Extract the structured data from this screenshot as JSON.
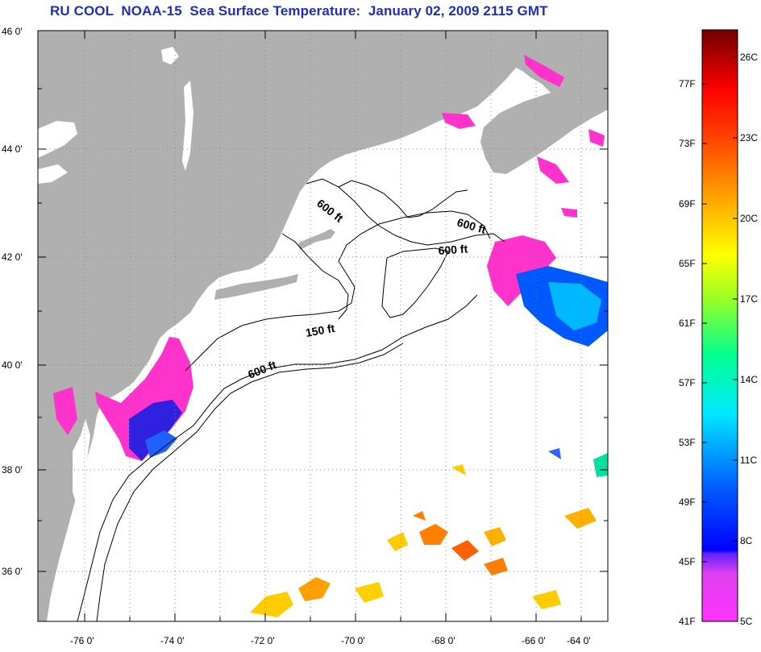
{
  "title": "RU COOL  NOAA-15  Sea Surface Temperature:  January 02, 2009 2115 GMT",
  "map": {
    "latitude_labels": [
      "46 0'",
      "44 0'",
      "42 0'",
      "40 0'",
      "38 0'",
      "36 0'"
    ],
    "longitude_labels": [
      "-76 0'",
      "-74 0'",
      "-72 0'",
      "-70 0'",
      "-68 0'",
      "-66 0'",
      "-64 0'"
    ],
    "contour_labels": [
      "600 ft",
      "600 ft",
      "600 ft",
      "150 ft",
      "600 ft"
    ],
    "colors": {
      "land": "#b0b0b0",
      "ocean": "#ffffff",
      "contour": "#000000",
      "grid": "#888888"
    }
  },
  "colorbar": {
    "fahrenheit_labels": [
      "77F",
      "73F",
      "69F",
      "65F",
      "61F",
      "57F",
      "53F",
      "49F",
      "45F",
      "41F"
    ],
    "celsius_labels": [
      "26C",
      "23C",
      "20C",
      "17C",
      "14C",
      "11C",
      "8C",
      "5C"
    ],
    "gradient_colors": [
      "#ff00ff",
      "#ff33cc",
      "#b040e0",
      "#3000ff",
      "#0000ff",
      "#0080ff",
      "#00e0ff",
      "#00ff90",
      "#a0ff20",
      "#ffff00",
      "#ffb000",
      "#ff6000",
      "#ff0000",
      "#b00000",
      "#700000"
    ]
  }
}
